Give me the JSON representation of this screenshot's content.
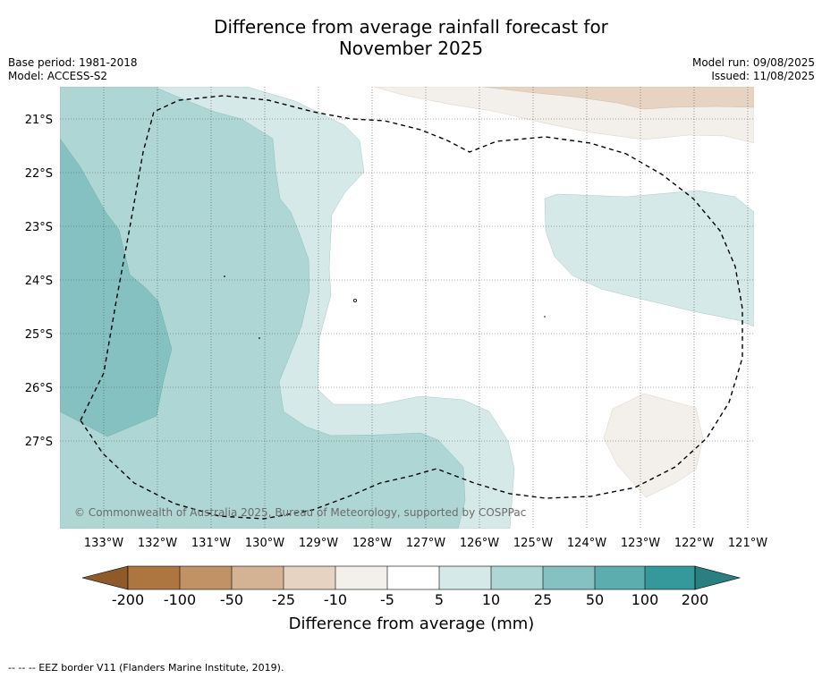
{
  "title_line1": "Difference from average rainfall forecast for",
  "title_line2": "November 2025",
  "base_period": "Base period: 1981-2018",
  "model": "Model: ACCESS-S2",
  "model_run": "Model run: 09/08/2025",
  "issued": "Issued: 11/08/2025",
  "copyright": "© Commonwealth of Australia 2025, Bureau of Meteorology, supported by COSPPac",
  "lat_labels": [
    "21°S",
    "22°S",
    "23°S",
    "24°S",
    "25°S",
    "26°S",
    "27°S"
  ],
  "lon_labels": [
    "133°W",
    "132°W",
    "131°W",
    "130°W",
    "129°W",
    "128°W",
    "127°W",
    "126°W",
    "125°W",
    "124°W",
    "123°W",
    "122°W",
    "121°W"
  ],
  "colorbar": {
    "title": "Difference from average (mm)",
    "ticks": [
      "-200",
      "-100",
      "-50",
      "-25",
      "-10",
      "-5",
      "5",
      "10",
      "25",
      "50",
      "100",
      "200"
    ],
    "colors": [
      "#8e5a2a",
      "#ad7540",
      "#c29267",
      "#d4b395",
      "#e6d3c2",
      "#f3efea",
      "#ffffff",
      "#d5e9e8",
      "#aed6d5",
      "#84c1c0",
      "#5caeae",
      "#35989a",
      "#2a7f80"
    ]
  },
  "footer": "-- -- -- EEZ border V11 (Flanders Marine Institute, 2019)."
}
